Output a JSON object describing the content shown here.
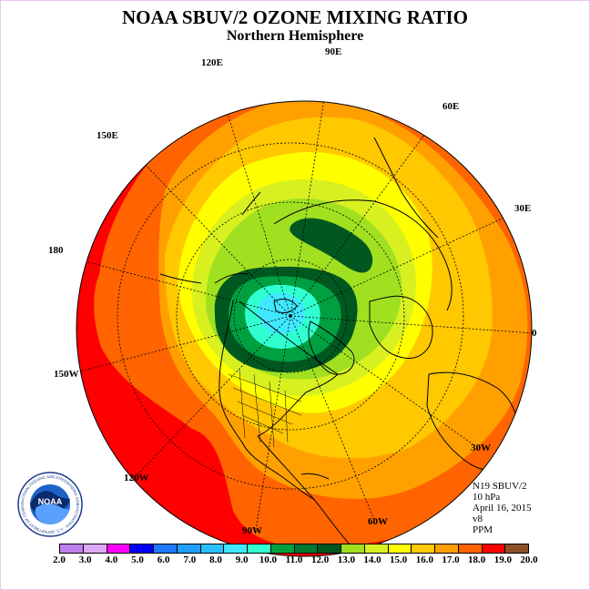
{
  "title": "NOAA SBUV/2 OZONE MIXING RATIO",
  "subtitle": "Northern Hemisphere",
  "longitude_labels": {
    "90E": "90E",
    "120E": "120E",
    "60E": "60E",
    "150E": "150E",
    "30E": "30E",
    "180": "180",
    "0": "0",
    "150W": "150W",
    "30W": "30W",
    "120W": "120W",
    "60W": "60W",
    "90W": "90W"
  },
  "info": {
    "instrument": "N19 SBUV/2",
    "pressure": "10 hPa",
    "date": "April 16, 2015",
    "version": "v8",
    "units": "PPM"
  },
  "logo": {
    "text": "NOAA",
    "ring_text": "NATIONAL OCEANIC AND ATMOSPHERIC ADMINISTRATION · U.S. DEPARTMENT OF COMMERCE"
  },
  "colorbar": {
    "ticks": [
      "2.0",
      "3.0",
      "4.0",
      "5.0",
      "6.0",
      "7.0",
      "8.0",
      "9.0",
      "10.0",
      "11.0",
      "12.0",
      "13.0",
      "14.0",
      "15.0",
      "16.0",
      "17.0",
      "18.0",
      "19.0",
      "20.0"
    ],
    "colors": [
      "#c080f0",
      "#e0a8f8",
      "#ff00ff",
      "#0000ff",
      "#1e78ff",
      "#1ea0ff",
      "#28c0ff",
      "#40e8ff",
      "#30ffd0",
      "#00a040",
      "#007830",
      "#005820",
      "#a0e020",
      "#d8f020",
      "#ffff00",
      "#ffc800",
      "#ffa000",
      "#ff6400",
      "#ff0000",
      "#8c5028"
    ]
  },
  "map_levels": {
    "outer_band_ppm": "18.0-19.0",
    "polar_min_ppm": "9.0-10.0",
    "collar_max_ppm": "11.0-12.0"
  }
}
